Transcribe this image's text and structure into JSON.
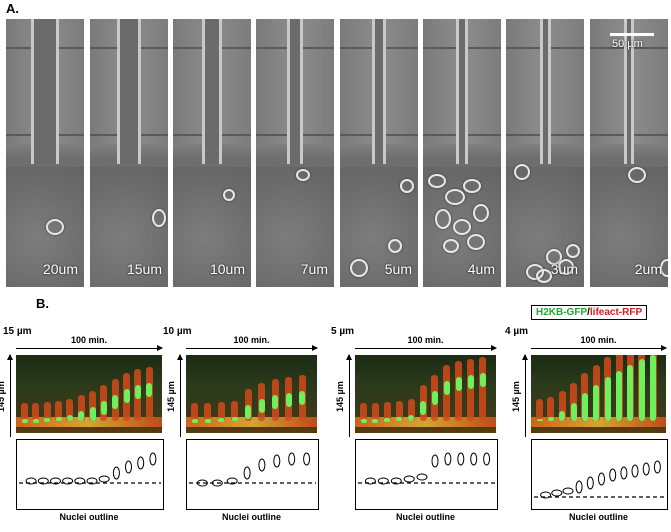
{
  "panel_a": {
    "label": "A.",
    "scale_bar": "50 µm",
    "frames": [
      "20um",
      "15um",
      "10um",
      "7um",
      "5um",
      "4um",
      "3um",
      "2um"
    ]
  },
  "panel_b": {
    "label": "B.",
    "legend": {
      "green": "H2KB-GFP",
      "separator": "/",
      "red": "lifeact-RFP",
      "green_color": "#22a834",
      "red_color": "#d42020"
    },
    "time_label": "100 min.",
    "height_label": "145 µm",
    "outline_caption": "Nuclei outline",
    "kymographs": [
      {
        "width_label": "15 µm",
        "time_label": "100 min."
      },
      {
        "width_label": "10 µm",
        "time_label": "100 min."
      },
      {
        "width_label": "5 µm",
        "time_label": "100 min."
      },
      {
        "width_label": "4 µm",
        "time_label": "100 min."
      }
    ]
  }
}
